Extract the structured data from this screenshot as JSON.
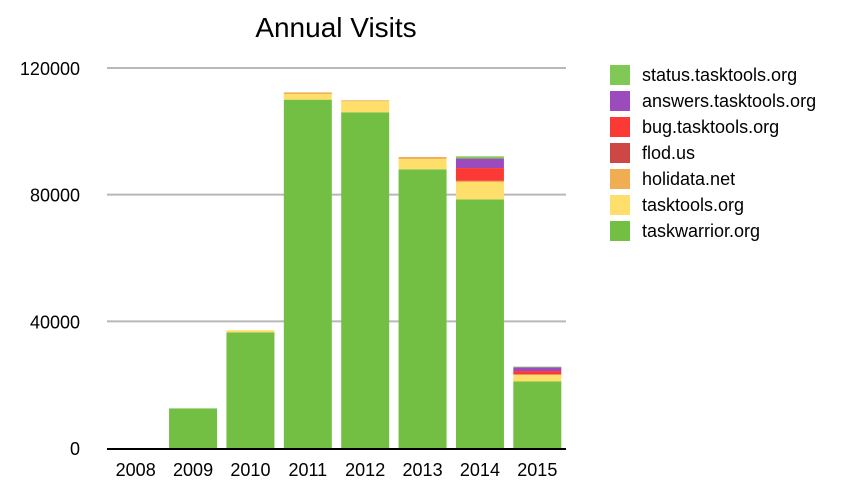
{
  "chart_data": {
    "type": "bar",
    "stacked": true,
    "title": "Annual Visits",
    "xlabel": "",
    "ylabel": "",
    "categories": [
      "2008",
      "2009",
      "2010",
      "2011",
      "2012",
      "2013",
      "2014",
      "2015"
    ],
    "ylim": [
      0,
      120000
    ],
    "yticks": [
      0,
      40000,
      80000,
      120000
    ],
    "ytick_labels": [
      "0",
      "40000",
      "80000",
      "120000"
    ],
    "grid": "horizontal",
    "legend_position": "right",
    "series": [
      {
        "name": "taskwarrior.org",
        "color": "#72bf44",
        "values": [
          0,
          12500,
          36500,
          110000,
          106000,
          88000,
          78500,
          21000
        ]
      },
      {
        "name": "tasktools.org",
        "color": "#fedf6b",
        "values": [
          0,
          0,
          700,
          1800,
          3500,
          3300,
          5500,
          2000
        ]
      },
      {
        "name": "holidata.net",
        "color": "#f0ae53",
        "values": [
          0,
          0,
          0,
          500,
          300,
          600,
          300,
          200
        ]
      },
      {
        "name": "flod.us",
        "color": "#cd4745",
        "values": [
          0,
          0,
          0,
          0,
          0,
          0,
          100,
          100
        ]
      },
      {
        "name": "bug.tasktools.org",
        "color": "#fc3a35",
        "values": [
          0,
          0,
          0,
          0,
          0,
          0,
          4000,
          1000
        ]
      },
      {
        "name": "answers.tasktools.org",
        "color": "#9c4bbd",
        "values": [
          0,
          0,
          0,
          0,
          0,
          0,
          3000,
          1200
        ]
      },
      {
        "name": "status.tasktools.org",
        "color": "#80c954",
        "values": [
          0,
          0,
          0,
          0,
          0,
          0,
          700,
          200
        ]
      }
    ],
    "legend_order": [
      "status.tasktools.org",
      "answers.tasktools.org",
      "bug.tasktools.org",
      "flod.us",
      "holidata.net",
      "tasktools.org",
      "taskwarrior.org"
    ]
  }
}
